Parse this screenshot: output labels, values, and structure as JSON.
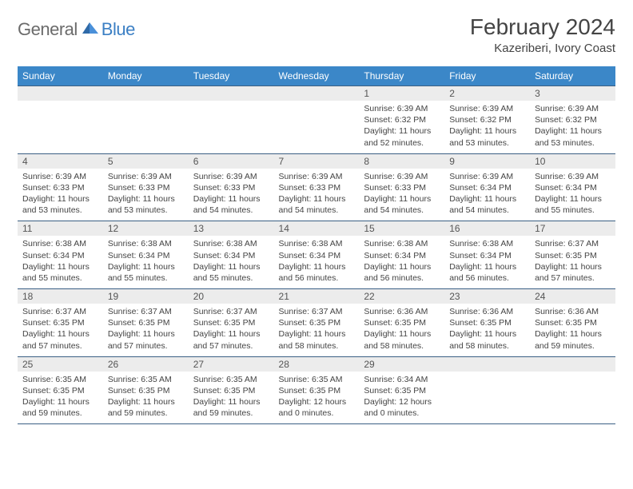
{
  "logo": {
    "general": "General",
    "blue": "Blue"
  },
  "title": "February 2024",
  "location": "Kazeriberi, Ivory Coast",
  "colors": {
    "header_bg": "#3b87c8",
    "header_text": "#ffffff",
    "daynum_bg": "#ececec",
    "border": "#3b5f84",
    "text": "#444444",
    "logo_gray": "#6b6b6b",
    "logo_blue": "#3b7fc4"
  },
  "day_headers": [
    "Sunday",
    "Monday",
    "Tuesday",
    "Wednesday",
    "Thursday",
    "Friday",
    "Saturday"
  ],
  "weeks": [
    {
      "nums": [
        "",
        "",
        "",
        "",
        "1",
        "2",
        "3"
      ],
      "cells": [
        null,
        null,
        null,
        null,
        {
          "sunrise": "6:39 AM",
          "sunset": "6:32 PM",
          "daylight": "11 hours and 52 minutes."
        },
        {
          "sunrise": "6:39 AM",
          "sunset": "6:32 PM",
          "daylight": "11 hours and 53 minutes."
        },
        {
          "sunrise": "6:39 AM",
          "sunset": "6:32 PM",
          "daylight": "11 hours and 53 minutes."
        }
      ]
    },
    {
      "nums": [
        "4",
        "5",
        "6",
        "7",
        "8",
        "9",
        "10"
      ],
      "cells": [
        {
          "sunrise": "6:39 AM",
          "sunset": "6:33 PM",
          "daylight": "11 hours and 53 minutes."
        },
        {
          "sunrise": "6:39 AM",
          "sunset": "6:33 PM",
          "daylight": "11 hours and 53 minutes."
        },
        {
          "sunrise": "6:39 AM",
          "sunset": "6:33 PM",
          "daylight": "11 hours and 54 minutes."
        },
        {
          "sunrise": "6:39 AM",
          "sunset": "6:33 PM",
          "daylight": "11 hours and 54 minutes."
        },
        {
          "sunrise": "6:39 AM",
          "sunset": "6:33 PM",
          "daylight": "11 hours and 54 minutes."
        },
        {
          "sunrise": "6:39 AM",
          "sunset": "6:34 PM",
          "daylight": "11 hours and 54 minutes."
        },
        {
          "sunrise": "6:39 AM",
          "sunset": "6:34 PM",
          "daylight": "11 hours and 55 minutes."
        }
      ]
    },
    {
      "nums": [
        "11",
        "12",
        "13",
        "14",
        "15",
        "16",
        "17"
      ],
      "cells": [
        {
          "sunrise": "6:38 AM",
          "sunset": "6:34 PM",
          "daylight": "11 hours and 55 minutes."
        },
        {
          "sunrise": "6:38 AM",
          "sunset": "6:34 PM",
          "daylight": "11 hours and 55 minutes."
        },
        {
          "sunrise": "6:38 AM",
          "sunset": "6:34 PM",
          "daylight": "11 hours and 55 minutes."
        },
        {
          "sunrise": "6:38 AM",
          "sunset": "6:34 PM",
          "daylight": "11 hours and 56 minutes."
        },
        {
          "sunrise": "6:38 AM",
          "sunset": "6:34 PM",
          "daylight": "11 hours and 56 minutes."
        },
        {
          "sunrise": "6:38 AM",
          "sunset": "6:34 PM",
          "daylight": "11 hours and 56 minutes."
        },
        {
          "sunrise": "6:37 AM",
          "sunset": "6:35 PM",
          "daylight": "11 hours and 57 minutes."
        }
      ]
    },
    {
      "nums": [
        "18",
        "19",
        "20",
        "21",
        "22",
        "23",
        "24"
      ],
      "cells": [
        {
          "sunrise": "6:37 AM",
          "sunset": "6:35 PM",
          "daylight": "11 hours and 57 minutes."
        },
        {
          "sunrise": "6:37 AM",
          "sunset": "6:35 PM",
          "daylight": "11 hours and 57 minutes."
        },
        {
          "sunrise": "6:37 AM",
          "sunset": "6:35 PM",
          "daylight": "11 hours and 57 minutes."
        },
        {
          "sunrise": "6:37 AM",
          "sunset": "6:35 PM",
          "daylight": "11 hours and 58 minutes."
        },
        {
          "sunrise": "6:36 AM",
          "sunset": "6:35 PM",
          "daylight": "11 hours and 58 minutes."
        },
        {
          "sunrise": "6:36 AM",
          "sunset": "6:35 PM",
          "daylight": "11 hours and 58 minutes."
        },
        {
          "sunrise": "6:36 AM",
          "sunset": "6:35 PM",
          "daylight": "11 hours and 59 minutes."
        }
      ]
    },
    {
      "nums": [
        "25",
        "26",
        "27",
        "28",
        "29",
        "",
        ""
      ],
      "cells": [
        {
          "sunrise": "6:35 AM",
          "sunset": "6:35 PM",
          "daylight": "11 hours and 59 minutes."
        },
        {
          "sunrise": "6:35 AM",
          "sunset": "6:35 PM",
          "daylight": "11 hours and 59 minutes."
        },
        {
          "sunrise": "6:35 AM",
          "sunset": "6:35 PM",
          "daylight": "11 hours and 59 minutes."
        },
        {
          "sunrise": "6:35 AM",
          "sunset": "6:35 PM",
          "daylight": "12 hours and 0 minutes."
        },
        {
          "sunrise": "6:34 AM",
          "sunset": "6:35 PM",
          "daylight": "12 hours and 0 minutes."
        },
        null,
        null
      ]
    }
  ],
  "labels": {
    "sunrise": "Sunrise:",
    "sunset": "Sunset:",
    "daylight": "Daylight:"
  }
}
